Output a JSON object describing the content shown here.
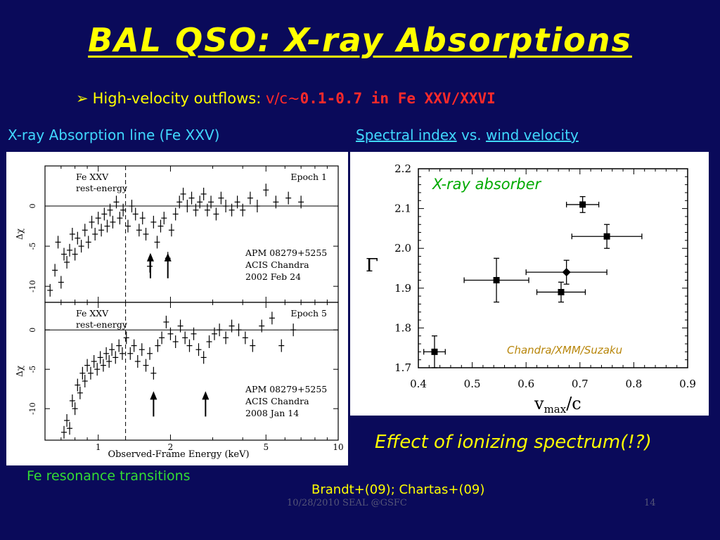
{
  "title": "BAL QSO: X-ray Absorptions",
  "bullet": {
    "marker": "➢",
    "text": "High-velocity outflows: ",
    "vc": "v/c~",
    "value": "0.1-0.7 in Fe XXV/XXVI"
  },
  "left_heading": "X-ray Absorption line (Fe XXV)",
  "right_heading": {
    "part1": "Spectral index",
    "part2": " vs. ",
    "part3": "wind velocity"
  },
  "fe_caption": "Fe resonance transitions",
  "effect": "Effect of ionizing spectrum(!?)",
  "refs": "Brandt+(09); Chartas+(09)",
  "footer": {
    "date": "10/28/2010 SEAL @GSFC",
    "page": "14"
  },
  "chart_data": [
    {
      "type": "scatter",
      "title": "",
      "annotations": [
        "X-ray absorber",
        "Chandra/XMM/Suzaku"
      ],
      "xlabel": "v",
      "xlabel_sub": "max",
      "xlabel_suffix": "/c",
      "ylabel": "Γ",
      "xlim": [
        0.4,
        0.9
      ],
      "ylim": [
        1.7,
        2.2
      ],
      "xticks": [
        "0.4",
        "0.5",
        "0.6",
        "0.7",
        "0.8",
        "0.9"
      ],
      "yticks": [
        "1.7",
        "1.8",
        "1.9",
        "2.0",
        "2.1",
        "2.2"
      ],
      "points": [
        {
          "x": 0.43,
          "y": 1.74,
          "xerr": 0.02,
          "yerr": 0.04,
          "marker": "square"
        },
        {
          "x": 0.545,
          "y": 1.92,
          "xerr": 0.06,
          "yerr": 0.055,
          "marker": "square"
        },
        {
          "x": 0.665,
          "y": 1.89,
          "xerr": 0.045,
          "yerr": 0.025,
          "marker": "square"
        },
        {
          "x": 0.675,
          "y": 1.94,
          "xerr": 0.075,
          "yerr": 0.03,
          "marker": "diamond"
        },
        {
          "x": 0.705,
          "y": 2.11,
          "xerr": 0.03,
          "yerr": 0.02,
          "marker": "square"
        },
        {
          "x": 0.75,
          "y": 2.03,
          "xerr": 0.065,
          "yerr": 0.03,
          "marker": "square"
        }
      ]
    },
    {
      "type": "scatter",
      "title": "",
      "xlabel": "Observed-Frame Energy (keV)",
      "xscale": "log",
      "xlim": [
        0.6,
        10
      ],
      "xticks": [
        "1",
        "2",
        "5",
        "10"
      ],
      "panels": [
        {
          "label_topleft": [
            "Fe XXV",
            "rest-energy"
          ],
          "label_topright": "Epoch 1",
          "ylabel": "Δχ",
          "ylim": [
            -12,
            5
          ],
          "yticks": [
            "0",
            "-5",
            "-10"
          ],
          "info": [
            "APM 08279+5255",
            "ACIS Chandra",
            "2002 Feb 24"
          ],
          "dashed_line_x": 1.3,
          "arrows_x": [
            1.65,
            1.95
          ],
          "points": [
            {
              "x": 0.63,
              "y": -10.5
            },
            {
              "x": 0.66,
              "y": -8
            },
            {
              "x": 0.68,
              "y": -4.5
            },
            {
              "x": 0.7,
              "y": -9.5
            },
            {
              "x": 0.72,
              "y": -6
            },
            {
              "x": 0.74,
              "y": -7
            },
            {
              "x": 0.76,
              "y": -5.5
            },
            {
              "x": 0.78,
              "y": -3.5
            },
            {
              "x": 0.8,
              "y": -6
            },
            {
              "x": 0.82,
              "y": -4
            },
            {
              "x": 0.85,
              "y": -5
            },
            {
              "x": 0.88,
              "y": -3
            },
            {
              "x": 0.91,
              "y": -4.5
            },
            {
              "x": 0.94,
              "y": -2
            },
            {
              "x": 0.97,
              "y": -3.5
            },
            {
              "x": 1.0,
              "y": -1.5
            },
            {
              "x": 1.03,
              "y": -3
            },
            {
              "x": 1.06,
              "y": -1
            },
            {
              "x": 1.09,
              "y": -2.5
            },
            {
              "x": 1.12,
              "y": -0.5
            },
            {
              "x": 1.15,
              "y": -2
            },
            {
              "x": 1.19,
              "y": 0.5
            },
            {
              "x": 1.23,
              "y": -1.5
            },
            {
              "x": 1.27,
              "y": -0.5
            },
            {
              "x": 1.33,
              "y": -2.5
            },
            {
              "x": 1.38,
              "y": 0
            },
            {
              "x": 1.43,
              "y": -1
            },
            {
              "x": 1.48,
              "y": -3
            },
            {
              "x": 1.53,
              "y": -1.5
            },
            {
              "x": 1.58,
              "y": -3.5
            },
            {
              "x": 1.64,
              "y": -7.5
            },
            {
              "x": 1.7,
              "y": -2
            },
            {
              "x": 1.76,
              "y": -4.5
            },
            {
              "x": 1.82,
              "y": -2.5
            },
            {
              "x": 1.88,
              "y": -1.5
            },
            {
              "x": 1.95,
              "y": -6.5
            },
            {
              "x": 2.02,
              "y": -3
            },
            {
              "x": 2.1,
              "y": -1
            },
            {
              "x": 2.18,
              "y": 0.5
            },
            {
              "x": 2.26,
              "y": 1.5
            },
            {
              "x": 2.35,
              "y": 0
            },
            {
              "x": 2.45,
              "y": 1
            },
            {
              "x": 2.55,
              "y": -0.5
            },
            {
              "x": 2.65,
              "y": 0.5
            },
            {
              "x": 2.75,
              "y": 1.5
            },
            {
              "x": 2.85,
              "y": -0.5
            },
            {
              "x": 2.95,
              "y": 0.5
            },
            {
              "x": 3.1,
              "y": -1
            },
            {
              "x": 3.25,
              "y": 1
            },
            {
              "x": 3.4,
              "y": 0
            },
            {
              "x": 3.6,
              "y": -0.5
            },
            {
              "x": 3.8,
              "y": 0.5
            },
            {
              "x": 4.0,
              "y": -0.5
            },
            {
              "x": 4.3,
              "y": 1
            },
            {
              "x": 4.6,
              "y": 0
            },
            {
              "x": 5.0,
              "y": 2
            },
            {
              "x": 5.5,
              "y": 0.5
            },
            {
              "x": 6.2,
              "y": 1
            },
            {
              "x": 7.0,
              "y": 0.5
            }
          ]
        },
        {
          "label_topleft": [
            "Fe XXV",
            "rest-energy"
          ],
          "label_topright": "Epoch 5",
          "ylabel": "Δχ",
          "ylim": [
            -14,
            3.5
          ],
          "yticks": [
            "0",
            "-5",
            "-10"
          ],
          "info": [
            "APM 08279+5255",
            "ACIS Chandra",
            "2008 Jan 14"
          ],
          "dashed_line_x": 1.3,
          "arrows_x": [
            1.7,
            2.8
          ],
          "points": [
            {
              "x": 0.72,
              "y": -13
            },
            {
              "x": 0.74,
              "y": -11.5
            },
            {
              "x": 0.76,
              "y": -12.5
            },
            {
              "x": 0.78,
              "y": -9
            },
            {
              "x": 0.8,
              "y": -10
            },
            {
              "x": 0.82,
              "y": -7
            },
            {
              "x": 0.84,
              "y": -8
            },
            {
              "x": 0.86,
              "y": -5.5
            },
            {
              "x": 0.88,
              "y": -6.5
            },
            {
              "x": 0.9,
              "y": -4.5
            },
            {
              "x": 0.93,
              "y": -5.5
            },
            {
              "x": 0.96,
              "y": -4
            },
            {
              "x": 0.99,
              "y": -5
            },
            {
              "x": 1.02,
              "y": -3.5
            },
            {
              "x": 1.05,
              "y": -4.5
            },
            {
              "x": 1.08,
              "y": -3
            },
            {
              "x": 1.11,
              "y": -4
            },
            {
              "x": 1.14,
              "y": -2.5
            },
            {
              "x": 1.18,
              "y": -3.5
            },
            {
              "x": 1.22,
              "y": -2
            },
            {
              "x": 1.26,
              "y": -3
            },
            {
              "x": 1.31,
              "y": -1
            },
            {
              "x": 1.36,
              "y": -3
            },
            {
              "x": 1.41,
              "y": -2
            },
            {
              "x": 1.46,
              "y": -4
            },
            {
              "x": 1.52,
              "y": -2.5
            },
            {
              "x": 1.58,
              "y": -4.5
            },
            {
              "x": 1.64,
              "y": -3
            },
            {
              "x": 1.7,
              "y": -5.5
            },
            {
              "x": 1.77,
              "y": -2
            },
            {
              "x": 1.84,
              "y": -1
            },
            {
              "x": 1.92,
              "y": 1
            },
            {
              "x": 2.0,
              "y": -0.5
            },
            {
              "x": 2.1,
              "y": -1.5
            },
            {
              "x": 2.2,
              "y": 0.5
            },
            {
              "x": 2.3,
              "y": -1
            },
            {
              "x": 2.4,
              "y": -2
            },
            {
              "x": 2.5,
              "y": -0.5
            },
            {
              "x": 2.62,
              "y": -2.5
            },
            {
              "x": 2.75,
              "y": -3.5
            },
            {
              "x": 2.9,
              "y": -1.5
            },
            {
              "x": 3.05,
              "y": -0.5
            },
            {
              "x": 3.2,
              "y": 0
            },
            {
              "x": 3.4,
              "y": -1
            },
            {
              "x": 3.6,
              "y": 0.5
            },
            {
              "x": 3.85,
              "y": 0
            },
            {
              "x": 4.1,
              "y": -1
            },
            {
              "x": 4.4,
              "y": -2
            },
            {
              "x": 4.8,
              "y": 0.5
            },
            {
              "x": 5.3,
              "y": 1.5
            },
            {
              "x": 5.8,
              "y": -2
            },
            {
              "x": 6.5,
              "y": 0
            }
          ]
        }
      ]
    }
  ]
}
